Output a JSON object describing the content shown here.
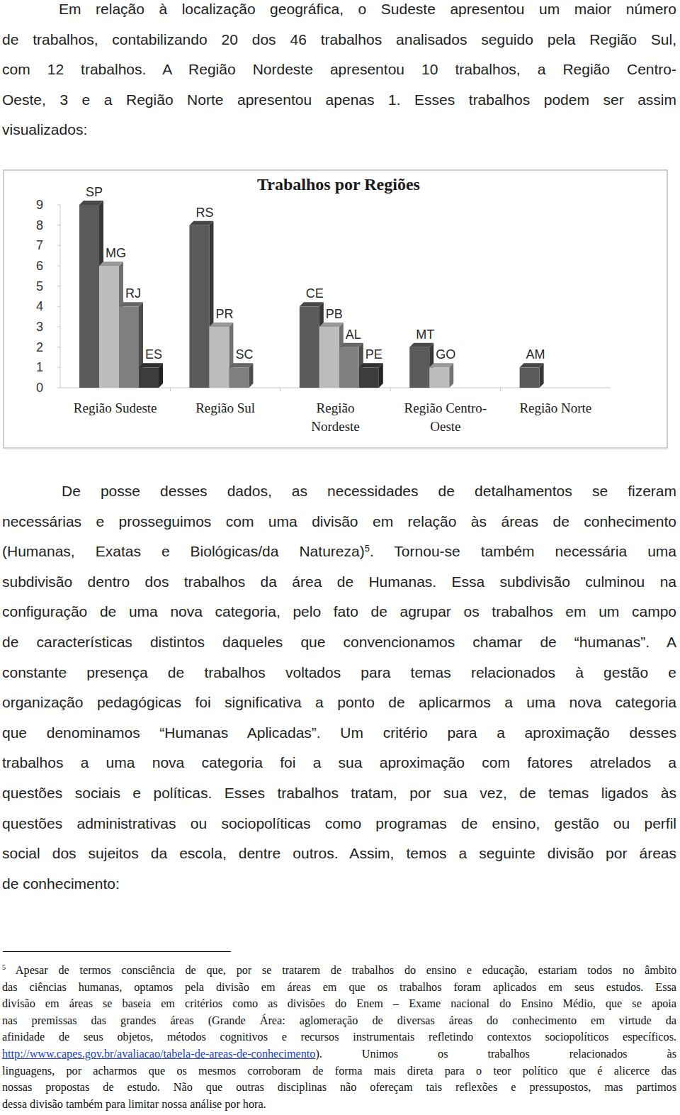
{
  "intro": {
    "lines": [
      "Em relação à localização geográfica, o Sudeste apresentou um maior número",
      "de trabalhos, contabilizando 20 dos 46 trabalhos analisados seguido pela Região Sul,",
      "com 12 trabalhos. A Região Nordeste apresentou 10 trabalhos, a Região Centro-",
      "Oeste, 3  e a Região Norte apresentou apenas 1. Esses trabalhos podem ser assim",
      "visualizados:"
    ]
  },
  "chart_data": {
    "type": "bar",
    "title": "Trabalhos por Regiões",
    "groups": [
      {
        "name": "Região Sudeste",
        "categories": [
          "SP",
          "MG",
          "RJ",
          "ES"
        ],
        "values": [
          9,
          6,
          4,
          1
        ],
        "colors": [
          "#5a5a5a",
          "#bdbdbd",
          "#7f7f7f",
          "#3c3c3c"
        ]
      },
      {
        "name": "Região Sul",
        "categories": [
          "RS",
          "PR",
          "SC"
        ],
        "values": [
          8,
          3,
          1
        ],
        "colors": [
          "#5a5a5a",
          "#bdbdbd",
          "#7f7f7f"
        ]
      },
      {
        "name": "Região\nNordeste",
        "categories": [
          "CE",
          "PB",
          "AL",
          "PE"
        ],
        "values": [
          4,
          3,
          2,
          1
        ],
        "colors": [
          "#5a5a5a",
          "#bdbdbd",
          "#7f7f7f",
          "#3c3c3c"
        ]
      },
      {
        "name": "Região Centro-\nOeste",
        "categories": [
          "MT",
          "GO"
        ],
        "values": [
          2,
          1
        ],
        "colors": [
          "#5a5a5a",
          "#bdbdbd"
        ]
      },
      {
        "name": "Região Norte",
        "categories": [
          "AM"
        ],
        "values": [
          1
        ],
        "colors": [
          "#5a5a5a"
        ]
      }
    ],
    "ylim": [
      0,
      9
    ],
    "yticks": [
      0,
      1,
      2,
      3,
      4,
      5,
      6,
      7,
      8,
      9
    ],
    "grid": false
  },
  "body": {
    "lines": [
      "De posse desses dados, as necessidades de detalhamentos se fizeram",
      "necessárias e prosseguimos com uma divisão em relação às áreas de conhecimento",
      [
        "(Humanas, Exatas e Biológicas/da Natureza)",
        {
          "sup": "5"
        },
        ". Tornou-se também necessária uma"
      ],
      "subdivisão dentro dos trabalhos da área de Humanas. Essa subdivisão culminou na",
      "configuração de uma nova categoria, pelo fato de agrupar os trabalhos em um campo",
      "de características distintos daqueles que convencionamos chamar de “humanas”. A",
      "constante presença de trabalhos voltados para temas relacionados à gestão e",
      "organização pedagógicas foi significativa a ponto de aplicarmos a uma nova categoria",
      "que denominamos “Humanas Aplicadas”. Um critério para a aproximação desses",
      "trabalhos a uma nova categoria foi a sua aproximação com fatores atrelados a",
      "questões sociais e políticas. Esses trabalhos tratam, por sua vez, de temas ligados às",
      "questões administrativas ou sociopolíticas como programas de ensino, gestão ou perfil",
      "social dos sujeitos da escola, dentre outros. Assim, temos a seguinte divisão por áreas",
      "de conhecimento:"
    ]
  },
  "footnote": {
    "lines": [
      [
        {
          "sup": "5"
        },
        " Apesar de termos consciência de que, por se tratarem de trabalhos do ensino e educação, estariam todos no âmbito"
      ],
      "das ciências humanas, optamos pela divisão em áreas em que os trabalhos foram aplicados em seus estudos. Essa",
      "divisão em áreas se baseia em critérios como as divisões do Enem – Exame nacional do Ensino Médio, que se apoia",
      "nas premissas das grandes áreas (Grande Área: aglomeração de diversas áreas do conhecimento em virtude da",
      "afinidade de seus objetos, métodos cognitivos e recursos instrumentais refletindo contextos sociopolíticos específicos.",
      [
        {
          "link": "http://www.capes.gov.br/avaliacao/tabela-de-areas-de-conhecimento"
        },
        ").  Unimos  os  trabalhos  relacionados  às"
      ],
      "linguagens, por acharmos que os mesmos corroboram de forma mais direta para o teor político que é alicerce das",
      "nossas propostas de estudo. Não que outras disciplinas não ofereçam tais reflexões e pressupostos, mas partimos",
      "dessa divisão também para limitar nossa análise por hora."
    ]
  }
}
